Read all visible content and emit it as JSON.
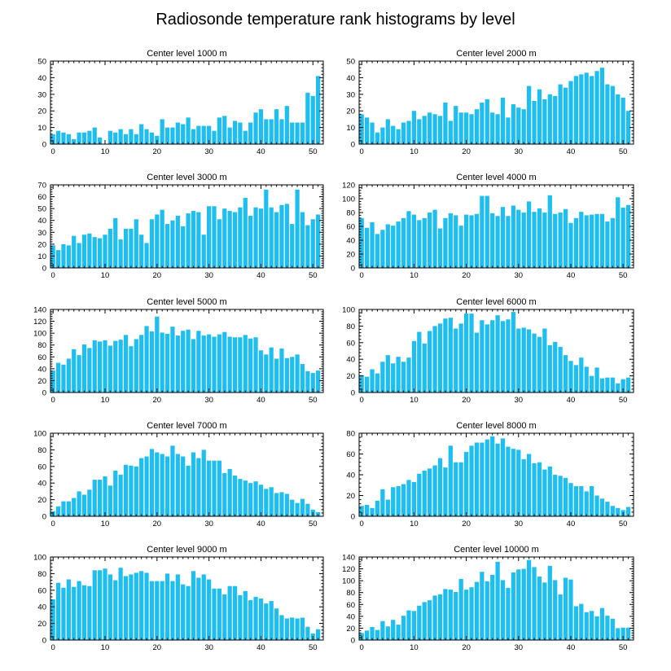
{
  "title": "Radiosonde temperature rank histograms by level",
  "bar_color": "#1EBFF0",
  "chart_data": [
    {
      "type": "bar",
      "title": "Center level 1000 m",
      "xlim": [
        -0.5,
        52
      ],
      "ylim": [
        0,
        50
      ],
      "xticks": [
        0,
        10,
        20,
        30,
        40,
        50
      ],
      "yticks": [
        0,
        10,
        20,
        30,
        40,
        50
      ],
      "values": [
        6,
        8,
        7,
        6,
        3,
        7,
        7,
        8,
        10,
        4,
        0,
        8,
        7,
        9,
        6,
        9,
        6,
        12,
        9,
        7,
        5,
        15,
        10,
        10,
        13,
        12,
        16,
        9,
        11,
        11,
        11,
        8,
        16,
        17,
        10,
        14,
        13,
        8,
        13,
        19,
        21,
        15,
        15,
        21,
        15,
        23,
        13,
        13,
        13,
        31,
        29,
        41
      ]
    },
    {
      "type": "bar",
      "title": "Center level 2000 m",
      "xlim": [
        -0.5,
        52
      ],
      "ylim": [
        0,
        50
      ],
      "xticks": [
        0,
        10,
        20,
        30,
        40,
        50
      ],
      "yticks": [
        0,
        10,
        20,
        30,
        40,
        50
      ],
      "values": [
        18,
        16,
        13,
        7,
        10,
        15,
        11,
        9,
        13,
        14,
        20,
        15,
        17,
        19,
        18,
        17,
        25,
        14,
        23,
        19,
        19,
        18,
        21,
        25,
        27,
        19,
        18,
        28,
        16,
        24,
        22,
        21,
        35,
        26,
        33,
        27,
        30,
        29,
        36,
        34,
        38,
        41,
        42,
        43,
        41,
        44,
        46,
        36,
        35,
        30,
        28,
        20
      ]
    },
    {
      "type": "bar",
      "title": "Center level 3000 m",
      "xlim": [
        -0.5,
        52
      ],
      "ylim": [
        0,
        70
      ],
      "xticks": [
        0,
        10,
        20,
        30,
        40,
        50
      ],
      "yticks": [
        0,
        10,
        20,
        30,
        40,
        50,
        60,
        70
      ],
      "values": [
        19,
        15,
        20,
        19,
        27,
        21,
        28,
        29,
        26,
        25,
        28,
        33,
        42,
        24,
        33,
        33,
        41,
        28,
        21,
        41,
        45,
        49,
        37,
        40,
        44,
        35,
        46,
        48,
        47,
        28,
        52,
        52,
        41,
        50,
        48,
        47,
        51,
        59,
        44,
        51,
        50,
        66,
        51,
        47,
        53,
        54,
        37,
        66,
        47,
        36,
        41,
        45
      ]
    },
    {
      "type": "bar",
      "title": "Center level 4000 m",
      "xlim": [
        -0.5,
        52
      ],
      "ylim": [
        0,
        120
      ],
      "xticks": [
        0,
        10,
        20,
        30,
        40,
        50
      ],
      "yticks": [
        0,
        20,
        40,
        60,
        80,
        100,
        120
      ],
      "values": [
        72,
        58,
        66,
        49,
        55,
        63,
        61,
        67,
        72,
        82,
        77,
        69,
        72,
        80,
        84,
        57,
        72,
        79,
        76,
        61,
        77,
        76,
        78,
        104,
        104,
        79,
        75,
        88,
        75,
        90,
        84,
        80,
        96,
        81,
        86,
        80,
        105,
        78,
        80,
        85,
        65,
        72,
        81,
        76,
        77,
        78,
        78,
        67,
        72,
        102,
        87,
        91
      ]
    },
    {
      "type": "bar",
      "title": "Center level 5000 m",
      "xlim": [
        -0.5,
        52
      ],
      "ylim": [
        0,
        140
      ],
      "xticks": [
        0,
        10,
        20,
        30,
        40,
        50
      ],
      "yticks": [
        0,
        20,
        40,
        60,
        80,
        100,
        120,
        140
      ],
      "values": [
        37,
        50,
        47,
        57,
        73,
        63,
        81,
        75,
        88,
        86,
        88,
        79,
        87,
        89,
        97,
        78,
        90,
        97,
        112,
        103,
        128,
        101,
        99,
        111,
        96,
        104,
        106,
        90,
        104,
        96,
        98,
        94,
        98,
        102,
        94,
        93,
        93,
        97,
        91,
        93,
        71,
        64,
        76,
        57,
        74,
        58,
        60,
        64,
        48,
        36,
        33,
        37
      ]
    },
    {
      "type": "bar",
      "title": "Center level 6000 m",
      "xlim": [
        -0.5,
        52
      ],
      "ylim": [
        0,
        100
      ],
      "xticks": [
        0,
        10,
        20,
        30,
        40,
        50
      ],
      "yticks": [
        0,
        20,
        40,
        60,
        80,
        100
      ],
      "values": [
        21,
        19,
        28,
        23,
        37,
        45,
        35,
        43,
        37,
        42,
        62,
        73,
        59,
        74,
        80,
        83,
        89,
        90,
        77,
        83,
        95,
        95,
        72,
        87,
        82,
        87,
        93,
        86,
        88,
        97,
        77,
        78,
        76,
        71,
        67,
        77,
        57,
        61,
        55,
        45,
        38,
        33,
        42,
        31,
        20,
        30,
        17,
        18,
        18,
        11,
        16,
        18
      ]
    },
    {
      "type": "bar",
      "title": "Center level 7000 m",
      "xlim": [
        -0.5,
        52
      ],
      "ylim": [
        0,
        100
      ],
      "xticks": [
        0,
        10,
        20,
        30,
        40,
        50
      ],
      "yticks": [
        0,
        20,
        40,
        60,
        80,
        100
      ],
      "values": [
        6,
        12,
        18,
        18,
        22,
        30,
        26,
        32,
        44,
        44,
        48,
        37,
        55,
        50,
        62,
        61,
        60,
        70,
        72,
        81,
        77,
        75,
        72,
        85,
        75,
        72,
        61,
        77,
        70,
        80,
        67,
        67,
        67,
        52,
        57,
        49,
        45,
        43,
        40,
        42,
        38,
        33,
        35,
        28,
        29,
        27,
        20,
        16,
        21,
        15,
        8,
        5
      ]
    },
    {
      "type": "bar",
      "title": "Center level 8000 m",
      "xlim": [
        -0.5,
        52
      ],
      "ylim": [
        0,
        80
      ],
      "xticks": [
        0,
        10,
        20,
        30,
        40,
        50
      ],
      "yticks": [
        0,
        20,
        40,
        60,
        80
      ],
      "values": [
        10,
        11,
        8,
        15,
        26,
        16,
        28,
        29,
        31,
        35,
        33,
        41,
        44,
        46,
        49,
        56,
        47,
        68,
        52,
        52,
        62,
        68,
        71,
        71,
        74,
        77,
        70,
        75,
        67,
        65,
        64,
        55,
        60,
        51,
        52,
        45,
        48,
        40,
        39,
        37,
        32,
        29,
        29,
        24,
        29,
        20,
        17,
        14,
        10,
        8,
        6,
        9
      ]
    },
    {
      "type": "bar",
      "title": "Center level 9000 m",
      "xlim": [
        -0.5,
        52
      ],
      "ylim": [
        0,
        100
      ],
      "xticks": [
        0,
        10,
        20,
        30,
        40,
        50
      ],
      "yticks": [
        0,
        20,
        40,
        60,
        80,
        100
      ],
      "values": [
        49,
        69,
        63,
        73,
        64,
        71,
        66,
        65,
        84,
        84,
        86,
        79,
        72,
        87,
        77,
        79,
        81,
        83,
        81,
        71,
        71,
        71,
        80,
        71,
        79,
        67,
        65,
        83,
        75,
        79,
        73,
        62,
        62,
        55,
        65,
        65,
        54,
        59,
        48,
        52,
        50,
        44,
        47,
        38,
        30,
        26,
        27,
        26,
        27,
        16,
        8,
        13
      ]
    },
    {
      "type": "bar",
      "title": "Center level 10000 m",
      "xlim": [
        -0.5,
        52
      ],
      "ylim": [
        0,
        140
      ],
      "xticks": [
        0,
        10,
        20,
        30,
        40,
        50
      ],
      "yticks": [
        0,
        20,
        40,
        60,
        80,
        100,
        120,
        140
      ],
      "values": [
        12,
        16,
        22,
        17,
        32,
        23,
        34,
        26,
        41,
        50,
        49,
        58,
        64,
        67,
        75,
        77,
        86,
        85,
        81,
        103,
        85,
        89,
        98,
        115,
        99,
        110,
        132,
        101,
        88,
        114,
        119,
        120,
        135,
        123,
        107,
        97,
        125,
        101,
        77,
        105,
        102,
        57,
        61,
        47,
        49,
        40,
        54,
        41,
        36,
        20,
        21,
        21
      ]
    }
  ]
}
